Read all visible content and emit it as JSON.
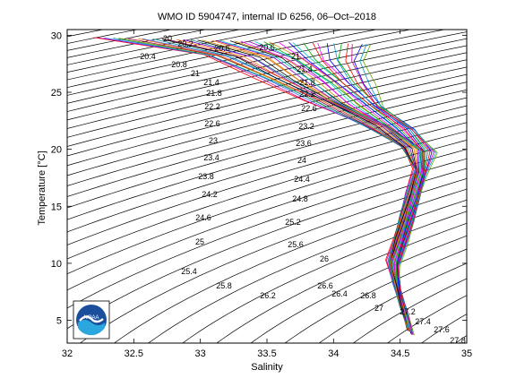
{
  "chart_data": {
    "type": "line",
    "title": "WMO ID 5904747, internal ID 6256, 06–Oct–2018",
    "xlabel": "Salinity",
    "ylabel": "Temperature [°C]",
    "xlim": [
      32,
      35
    ],
    "ylim": [
      3,
      30.5
    ],
    "x_ticks": [
      "32",
      "32.5",
      "33",
      "33.5",
      "34",
      "34.5",
      "35"
    ],
    "y_ticks": [
      "5",
      "10",
      "15",
      "20",
      "25",
      "30"
    ],
    "grid": false,
    "isopycnal_labels": [
      "20",
      "20.2",
      "20.4",
      "20.6",
      "20.8",
      "21",
      "21.4",
      "21.8",
      "22.2",
      "22.6",
      "23",
      "23.4",
      "23.8",
      "24.2",
      "24.6",
      "25",
      "25.4",
      "25.8",
      "26.2",
      "26.6",
      "27",
      "27.4",
      "27.8"
    ],
    "isopycnal_labels_right": [
      "20.6",
      "21",
      "21.4",
      "21.8",
      "22.2",
      "22.6",
      "23.2",
      "23.6",
      "24",
      "24.4",
      "24.8",
      "25.2",
      "25.6",
      "26",
      "26.4",
      "26.8",
      "27.2",
      "27.6"
    ],
    "profile_envelope": {
      "temperature": [
        29.5,
        28,
        26,
        24,
        22,
        20,
        18,
        16,
        14,
        12,
        10,
        8,
        6,
        4
      ],
      "salinity_min": [
        32.2,
        33.0,
        33.4,
        33.8,
        34.2,
        34.5,
        34.6,
        34.55,
        34.5,
        34.45,
        34.4,
        34.45,
        34.5,
        34.55
      ],
      "salinity_max": [
        34.3,
        34.2,
        34.3,
        34.4,
        34.6,
        34.75,
        34.7,
        34.65,
        34.6,
        34.55,
        34.5,
        34.5,
        34.55,
        34.6
      ]
    },
    "logo": "NOAA"
  }
}
